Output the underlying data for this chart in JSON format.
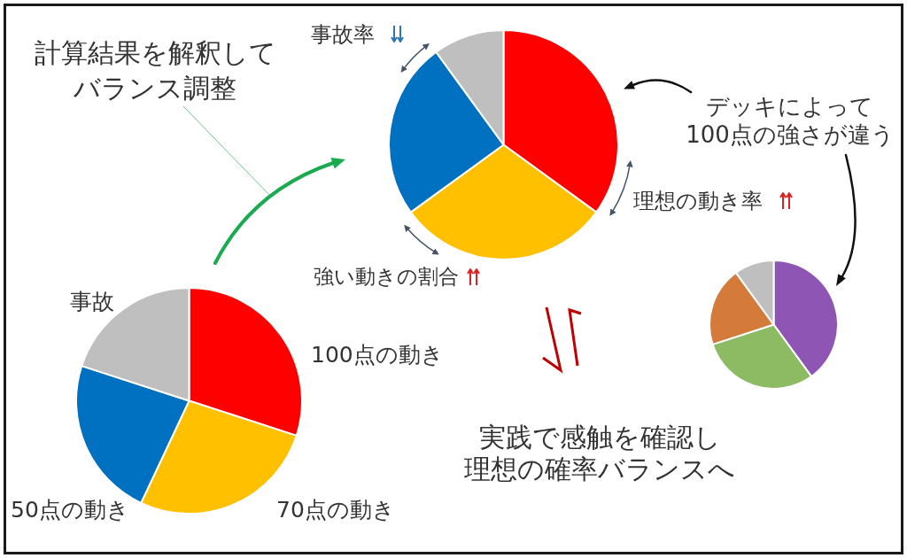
{
  "chart_data": [
    {
      "type": "pie",
      "categories": [
        null,
        null,
        null,
        null
      ],
      "values": [
        35,
        30,
        25,
        10
      ],
      "colors": [
        "#ff0000",
        "#ffc000",
        "#0070c0",
        "#bfbfbf"
      ],
      "annotations": [
        "計算結果を解釈してバランス調整",
        "事故率",
        "理想の動き率",
        "強い動きの割合",
        "実践で感触を確認し理想の確率バランスへ"
      ]
    },
    {
      "type": "pie",
      "categories": [
        "100点の動き",
        "70点の動き",
        "50点の動き",
        "事故"
      ],
      "values": [
        30,
        27,
        23,
        20
      ],
      "colors": [
        "#ff0000",
        "#ffc000",
        "#0070c0",
        "#bfbfbf"
      ]
    },
    {
      "type": "pie",
      "categories": [
        null,
        null,
        null,
        null
      ],
      "values": [
        40,
        30,
        20,
        10
      ],
      "colors": [
        "#8e55b4",
        "#8dbb63",
        "#d47b3c",
        "#bfbfbf"
      ],
      "annotations": [
        "デッキによって100点の強さが違う"
      ]
    }
  ]
}
